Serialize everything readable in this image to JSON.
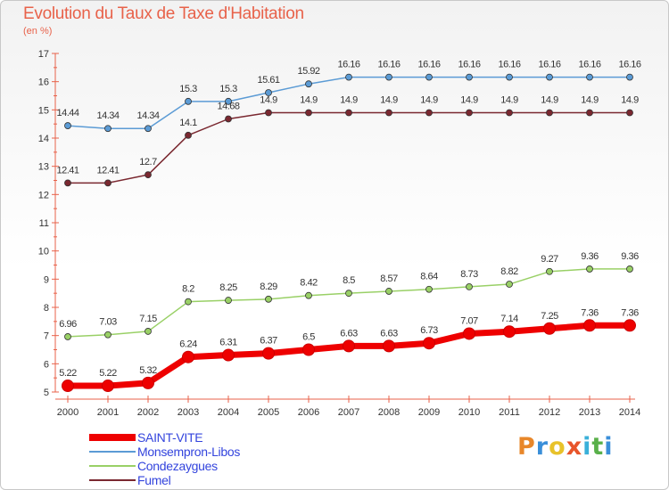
{
  "title": "Evolution du Taux de Taxe d'Habitation",
  "unit_label": "(en %)",
  "logo": {
    "letters": [
      "P",
      "r",
      "o",
      "x",
      "i",
      "t",
      "i"
    ],
    "colors": [
      "#e8872a",
      "#3a8fd9",
      "#e8c22a",
      "#e8552a",
      "#3ab0d9",
      "#59b04a",
      "#3a8fd9"
    ]
  },
  "chart_data": {
    "type": "line",
    "title": "Evolution du Taux de Taxe d'Habitation",
    "ylabel": "(en %)",
    "xlabel": "",
    "x": [
      "2000",
      "2001",
      "2002",
      "2003",
      "2004",
      "2005",
      "2006",
      "2007",
      "2008",
      "2009",
      "2010",
      "2011",
      "2012",
      "2013",
      "2014"
    ],
    "ylim": [
      5,
      17
    ],
    "yticks": [
      "5",
      "6",
      "7",
      "8",
      "9",
      "10",
      "11",
      "12",
      "13",
      "14",
      "15",
      "16",
      "17"
    ],
    "grid": false,
    "legend_position": "bottom-left",
    "series": [
      {
        "name": "SAINT-VITE",
        "color": "#ee0000",
        "emphasis": true,
        "values": [
          5.22,
          5.22,
          5.32,
          6.24,
          6.31,
          6.37,
          6.5,
          6.63,
          6.63,
          6.73,
          7.07,
          7.14,
          7.25,
          7.36,
          7.36
        ],
        "labels": [
          "5.22",
          "5.22",
          "5.32",
          "6.24",
          "6.31",
          "6.37",
          "6.5",
          "6.63",
          "6.63",
          "6.73",
          "7.07",
          "7.14",
          "7.25",
          "7.36",
          "7.36"
        ]
      },
      {
        "name": "Monsempron-Libos",
        "color": "#5b9bd5",
        "emphasis": false,
        "values": [
          14.44,
          14.34,
          14.34,
          15.3,
          15.3,
          15.61,
          15.92,
          16.16,
          16.16,
          16.16,
          16.16,
          16.16,
          16.16,
          16.16,
          16.16
        ],
        "labels": [
          "14.44",
          "14.34",
          "14.34",
          "15.3",
          "15.3",
          "15.61",
          "15.92",
          "16.16",
          "16.16",
          "16.16",
          "16.16",
          "16.16",
          "16.16",
          "16.16",
          "16.16"
        ]
      },
      {
        "name": "Condezaygues",
        "color": "#99d066",
        "emphasis": false,
        "values": [
          6.96,
          7.03,
          7.15,
          8.2,
          8.25,
          8.29,
          8.42,
          8.5,
          8.57,
          8.64,
          8.73,
          8.82,
          9.27,
          9.36,
          9.36
        ],
        "labels": [
          "6.96",
          "7.03",
          "7.15",
          "8.2",
          "8.25",
          "8.29",
          "8.42",
          "8.5",
          "8.57",
          "8.64",
          "8.73",
          "8.82",
          "9.27",
          "9.36",
          "9.36"
        ]
      },
      {
        "name": "Fumel",
        "color": "#7a2830",
        "emphasis": false,
        "values": [
          12.41,
          12.41,
          12.7,
          14.1,
          14.68,
          14.9,
          14.9,
          14.9,
          14.9,
          14.9,
          14.9,
          14.9,
          14.9,
          14.9,
          14.9
        ],
        "labels": [
          "12.41",
          "12.41",
          "12.7",
          "14.1",
          "14.68",
          "14.9",
          "14.9",
          "14.9",
          "14.9",
          "14.9",
          "14.9",
          "14.9",
          "14.9",
          "14.9",
          "14.9"
        ]
      }
    ]
  }
}
